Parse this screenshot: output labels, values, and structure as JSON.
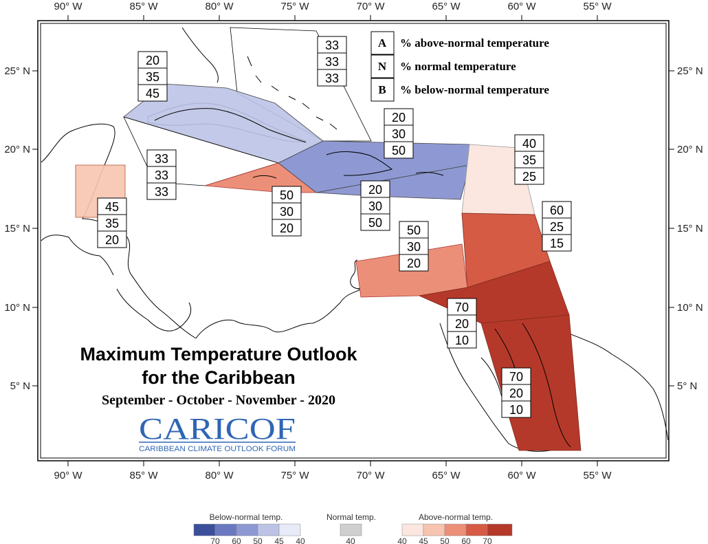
{
  "axes": {
    "top_lon": [
      "90° W",
      "85° W",
      "80° W",
      "75° W",
      "70° W",
      "65° W",
      "60° W",
      "55° W"
    ],
    "bottom_lon": [
      "90° W",
      "85° W",
      "80° W",
      "75° W",
      "70° W",
      "65° W",
      "60° W",
      "55° W"
    ],
    "left_lat": [
      "25° N",
      "20° N",
      "15° N",
      "10° N",
      "5° N"
    ],
    "right_lat": [
      "25° N",
      "20° N",
      "15° N",
      "10° N",
      "5° N"
    ]
  },
  "key": [
    {
      "letter": "A",
      "text": "% above-normal temperature"
    },
    {
      "letter": "N",
      "text": "% normal temperature"
    },
    {
      "letter": "B",
      "text": "% below-normal temperature"
    }
  ],
  "title": {
    "line1": "Maximum Temperature Outlook",
    "line2": "for the Caribbean",
    "subtitle": "September - October - November - 2020"
  },
  "logo": {
    "name": "CARICOF",
    "tagline": "CARIBBEAN CLIMATE OUTLOOK FORUM"
  },
  "region_probabilities": [
    {
      "id": "bahamas",
      "values": [
        "33",
        "33",
        "33"
      ]
    },
    {
      "id": "cuba",
      "values": [
        "20",
        "35",
        "45"
      ]
    },
    {
      "id": "cayman",
      "values": [
        "33",
        "33",
        "33"
      ]
    },
    {
      "id": "belize",
      "values": [
        "45",
        "35",
        "20"
      ]
    },
    {
      "id": "jamaica",
      "values": [
        "50",
        "30",
        "20"
      ]
    },
    {
      "id": "hispaniola-pr-north",
      "values": [
        "20",
        "30",
        "50"
      ]
    },
    {
      "id": "hispaniola-pr-south",
      "values": [
        "20",
        "30",
        "50"
      ]
    },
    {
      "id": "leeward",
      "values": [
        "40",
        "35",
        "25"
      ]
    },
    {
      "id": "windward",
      "values": [
        "60",
        "25",
        "15"
      ]
    },
    {
      "id": "abc-islands",
      "values": [
        "50",
        "30",
        "20"
      ]
    },
    {
      "id": "trinidad",
      "values": [
        "70",
        "20",
        "10"
      ]
    },
    {
      "id": "guianas",
      "values": [
        "70",
        "20",
        "10"
      ]
    }
  ],
  "colors": {
    "below70": "#3b4f9b",
    "below60": "#6a78bf",
    "below50": "#8e99d3",
    "below45": "#bcc3e6",
    "below40": "#e8ebf7",
    "normal40": "#cfcfcf",
    "above40": "#fbe7df",
    "above45": "#f7c4b0",
    "above50": "#ec8f78",
    "above60": "#d55b45",
    "above70": "#b5392a"
  },
  "colorbar": {
    "below_title": "Below-normal temp.",
    "normal_title": "Normal temp.",
    "above_title": "Above-normal temp.",
    "below_ticks": [
      "70",
      "60",
      "50",
      "45",
      "40"
    ],
    "normal_ticks": [
      "40"
    ],
    "above_ticks": [
      "40",
      "45",
      "50",
      "60",
      "70"
    ]
  }
}
